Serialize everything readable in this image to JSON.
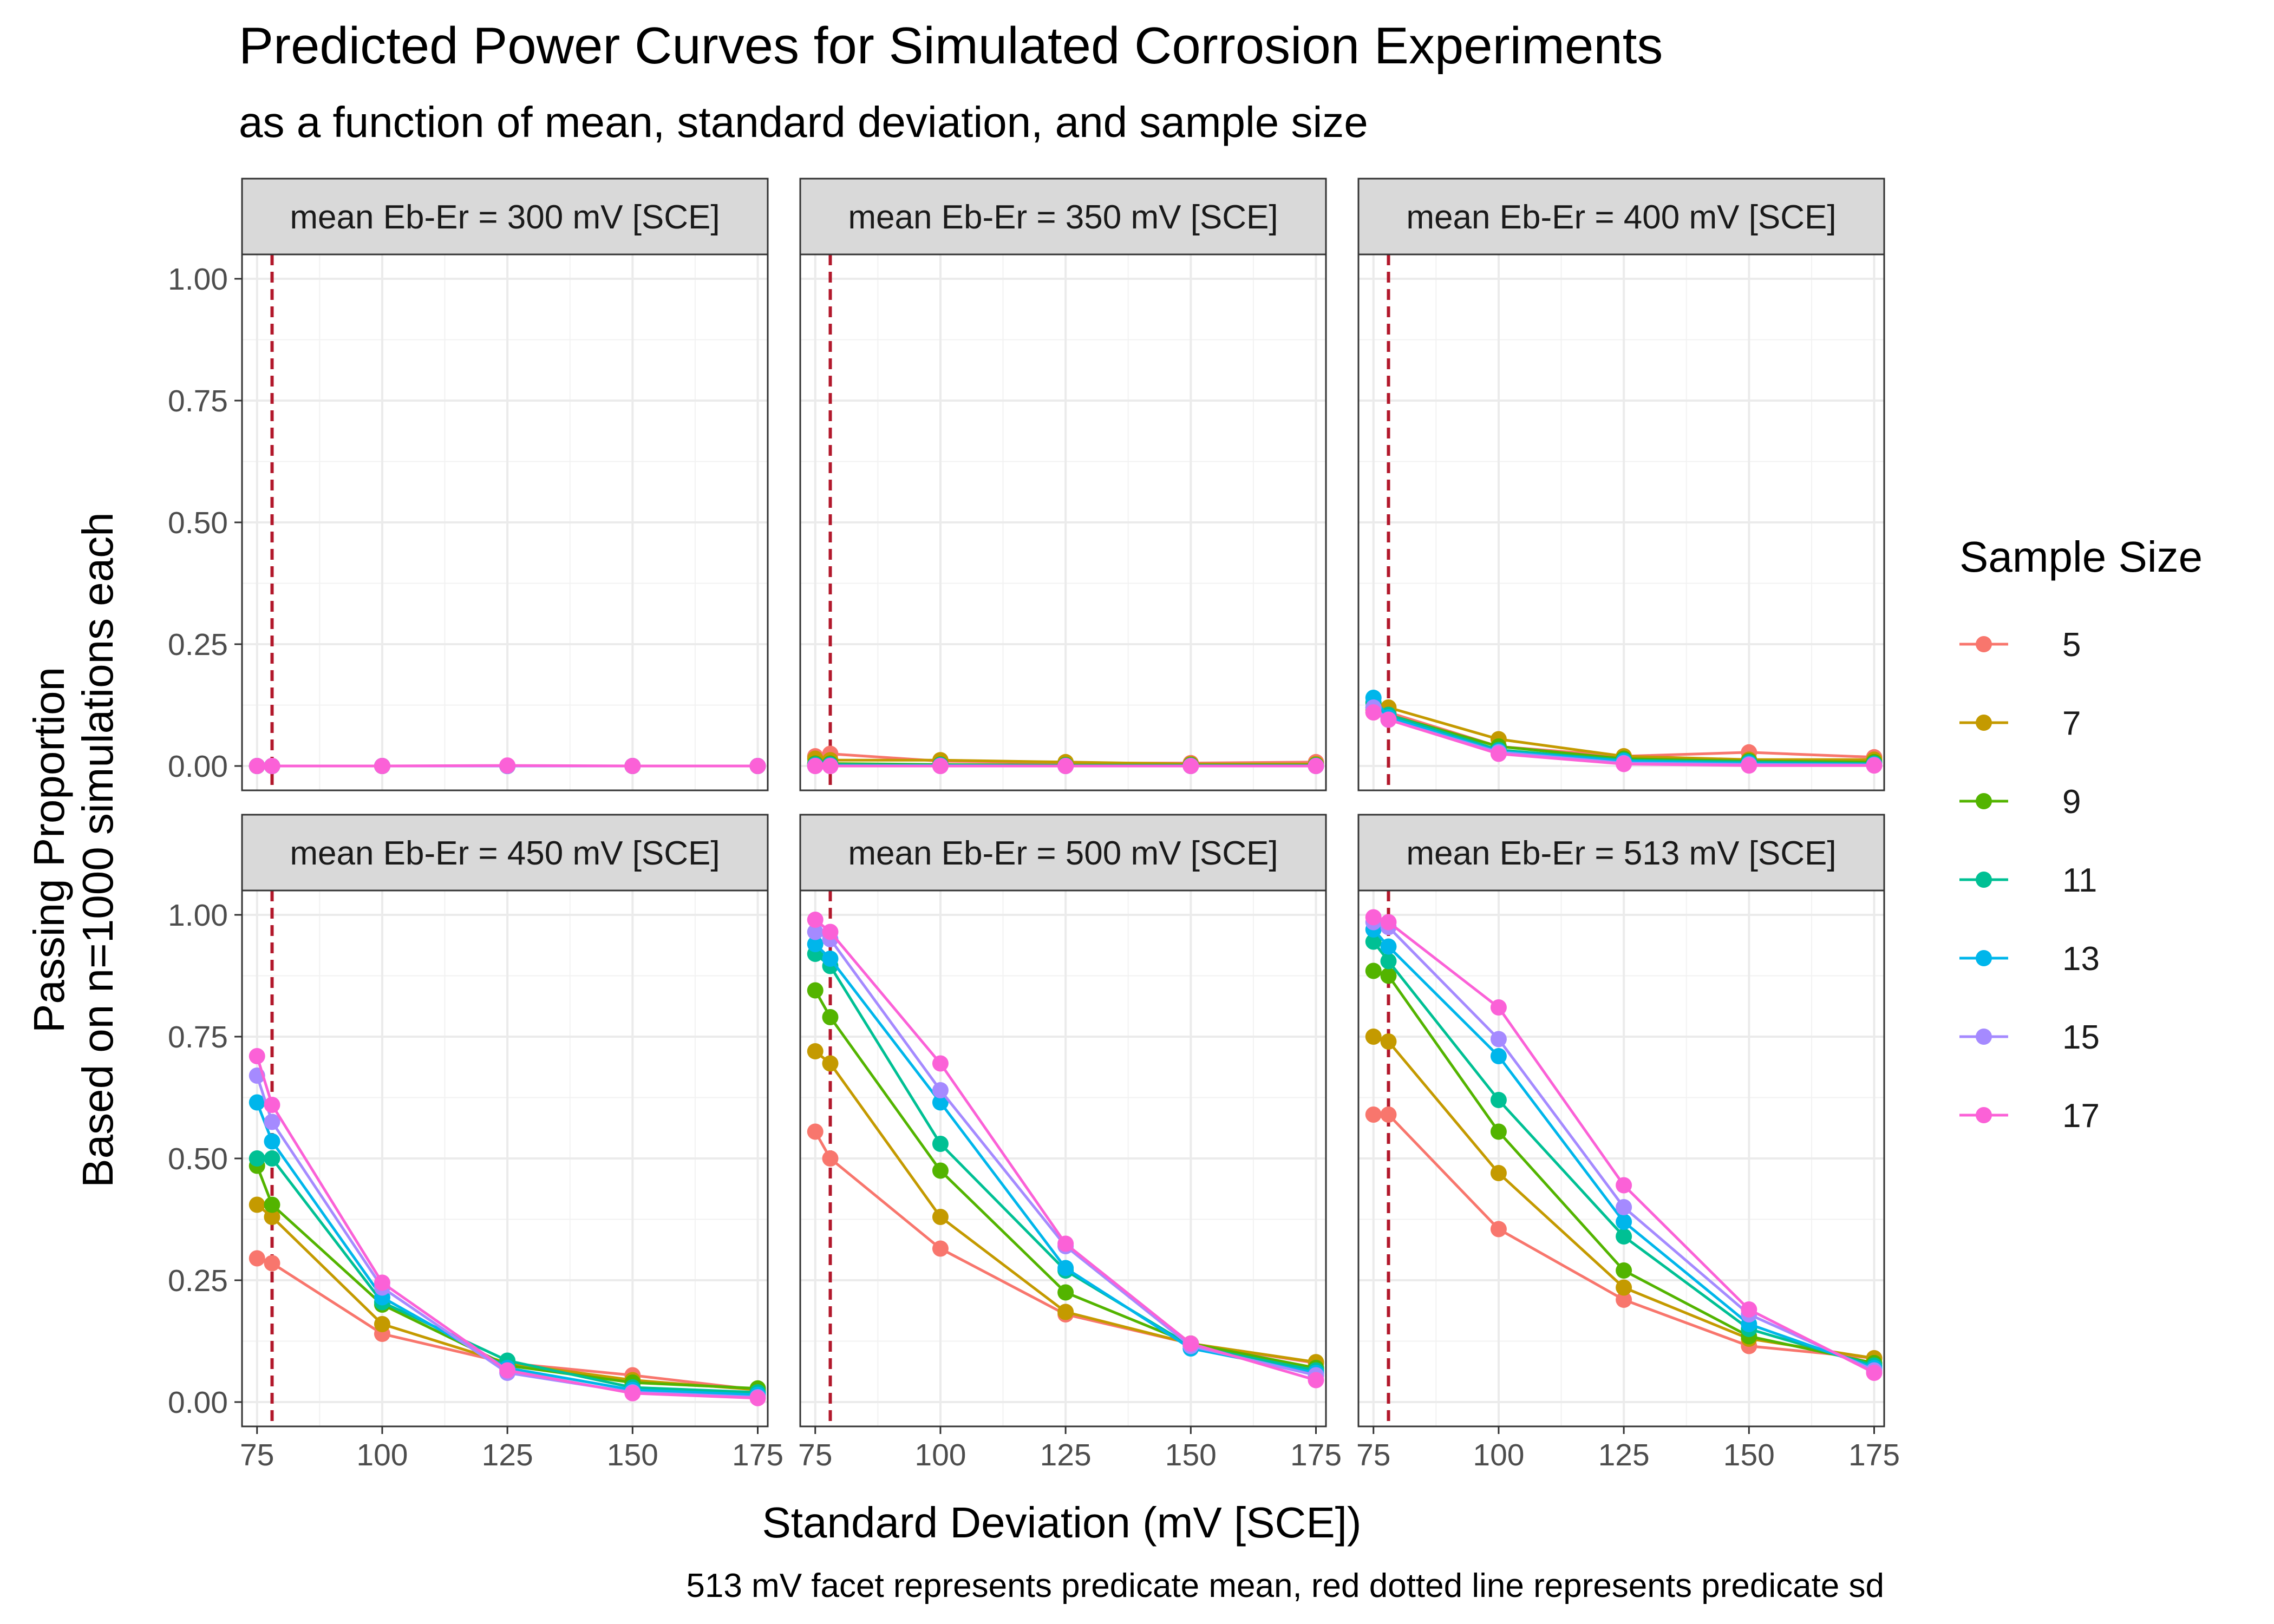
{
  "chart_data": {
    "type": "line",
    "title": "Predicted Power Curves for Simulated Corrosion Experiments",
    "subtitle": "as a function of mean, standard deviation, and sample size",
    "xlabel": "Standard Deviation (mV [SCE])",
    "ylabel_line1": "Passing Proportion",
    "ylabel_line2": "Based on n=1000 simulations each",
    "caption": "513 mV facet represents predicate mean, red dotted line represents predicate sd",
    "xlim": [
      72,
      177
    ],
    "ylim": [
      -0.05,
      1.05
    ],
    "x_ticks": [
      75,
      100,
      125,
      150,
      175
    ],
    "y_ticks": [
      "0.00",
      "0.25",
      "0.50",
      "0.75",
      "1.00"
    ],
    "y_tick_values": [
      0,
      0.25,
      0.5,
      0.75,
      1.0
    ],
    "x": [
      75,
      78,
      100,
      125,
      150,
      175
    ],
    "vline_x": 78,
    "vline_color": "#b2182b",
    "grid": true,
    "legend": {
      "title": "Sample Size",
      "position": "right",
      "entries": [
        "5",
        "7",
        "9",
        "11",
        "13",
        "15",
        "17"
      ]
    },
    "series_colors": [
      "#F8766D",
      "#C49A00",
      "#53B400",
      "#00C094",
      "#00B6EB",
      "#A58AFF",
      "#FB61D7"
    ],
    "panels": [
      {
        "label": "mean Eb-Er = 300 mV [SCE]",
        "series": [
          {
            "name": "5",
            "values": [
              0.0,
              0.0,
              0.0,
              0.0,
              0.0,
              0.0
            ]
          },
          {
            "name": "7",
            "values": [
              0.0,
              0.0,
              0.0,
              0.0,
              0.0,
              0.0
            ]
          },
          {
            "name": "9",
            "values": [
              0.0,
              0.0,
              0.0,
              0.0,
              0.0,
              0.0
            ]
          },
          {
            "name": "11",
            "values": [
              0.0,
              0.0,
              0.0,
              0.0,
              0.0,
              0.0
            ]
          },
          {
            "name": "13",
            "values": [
              0.0,
              0.0,
              0.0,
              0.0,
              0.0,
              0.0
            ]
          },
          {
            "name": "15",
            "values": [
              0.0,
              0.0,
              0.0,
              0.0,
              0.0,
              0.0
            ]
          },
          {
            "name": "17",
            "values": [
              0.0,
              0.0,
              0.0,
              0.001,
              0.0,
              0.0
            ]
          }
        ]
      },
      {
        "label": "mean Eb-Er = 350 mV [SCE]",
        "series": [
          {
            "name": "5",
            "values": [
              0.02,
              0.025,
              0.01,
              0.006,
              0.006,
              0.008
            ]
          },
          {
            "name": "7",
            "values": [
              0.015,
              0.012,
              0.012,
              0.008,
              0.004,
              0.004
            ]
          },
          {
            "name": "9",
            "values": [
              0.005,
              0.005,
              0.003,
              0.002,
              0.002,
              0.002
            ]
          },
          {
            "name": "11",
            "values": [
              0.003,
              0.003,
              0.002,
              0.001,
              0.001,
              0.001
            ]
          },
          {
            "name": "13",
            "values": [
              0.001,
              0.001,
              0.001,
              0.0,
              0.0,
              0.0
            ]
          },
          {
            "name": "15",
            "values": [
              0.0,
              0.0,
              0.0,
              0.0,
              0.0,
              0.0
            ]
          },
          {
            "name": "17",
            "values": [
              0.0,
              0.0,
              0.0,
              0.0,
              0.0,
              0.0
            ]
          }
        ]
      },
      {
        "label": "mean Eb-Er = 400 mV [SCE]",
        "series": [
          {
            "name": "5",
            "values": [
              0.11,
              0.11,
              0.04,
              0.02,
              0.028,
              0.018
            ]
          },
          {
            "name": "7",
            "values": [
              0.115,
              0.12,
              0.055,
              0.02,
              0.013,
              0.013
            ]
          },
          {
            "name": "9",
            "values": [
              0.12,
              0.105,
              0.04,
              0.015,
              0.01,
              0.008
            ]
          },
          {
            "name": "11",
            "values": [
              0.13,
              0.105,
              0.033,
              0.012,
              0.008,
              0.005
            ]
          },
          {
            "name": "13",
            "values": [
              0.14,
              0.1,
              0.03,
              0.01,
              0.005,
              0.003
            ]
          },
          {
            "name": "15",
            "values": [
              0.12,
              0.095,
              0.028,
              0.006,
              0.003,
              0.002
            ]
          },
          {
            "name": "17",
            "values": [
              0.11,
              0.095,
              0.025,
              0.004,
              0.001,
              0.001
            ]
          }
        ]
      },
      {
        "label": "mean Eb-Er = 450 mV [SCE]",
        "series": [
          {
            "name": "5",
            "values": [
              0.295,
              0.285,
              0.14,
              0.08,
              0.055,
              0.025
            ]
          },
          {
            "name": "7",
            "values": [
              0.405,
              0.38,
              0.16,
              0.08,
              0.045,
              0.025
            ]
          },
          {
            "name": "9",
            "values": [
              0.485,
              0.405,
              0.2,
              0.075,
              0.04,
              0.028
            ]
          },
          {
            "name": "11",
            "values": [
              0.5,
              0.5,
              0.205,
              0.085,
              0.03,
              0.02
            ]
          },
          {
            "name": "13",
            "values": [
              0.615,
              0.535,
              0.215,
              0.07,
              0.025,
              0.015
            ]
          },
          {
            "name": "15",
            "values": [
              0.67,
              0.575,
              0.235,
              0.06,
              0.02,
              0.01
            ]
          },
          {
            "name": "17",
            "values": [
              0.71,
              0.61,
              0.245,
              0.065,
              0.018,
              0.008
            ]
          }
        ]
      },
      {
        "label": "mean Eb-Er = 500 mV [SCE]",
        "series": [
          {
            "name": "5",
            "values": [
              0.555,
              0.5,
              0.315,
              0.18,
              0.12,
              0.08
            ]
          },
          {
            "name": "7",
            "values": [
              0.72,
              0.695,
              0.38,
              0.185,
              0.12,
              0.082
            ]
          },
          {
            "name": "9",
            "values": [
              0.845,
              0.79,
              0.475,
              0.225,
              0.12,
              0.07
            ]
          },
          {
            "name": "11",
            "values": [
              0.92,
              0.895,
              0.53,
              0.27,
              0.115,
              0.065
            ]
          },
          {
            "name": "13",
            "values": [
              0.94,
              0.91,
              0.615,
              0.275,
              0.11,
              0.06
            ]
          },
          {
            "name": "15",
            "values": [
              0.965,
              0.95,
              0.64,
              0.32,
              0.115,
              0.055
            ]
          },
          {
            "name": "17",
            "values": [
              0.99,
              0.965,
              0.695,
              0.325,
              0.12,
              0.045
            ]
          }
        ]
      },
      {
        "label": "mean Eb-Er = 513 mV [SCE]",
        "series": [
          {
            "name": "5",
            "values": [
              0.59,
              0.59,
              0.355,
              0.21,
              0.115,
              0.09
            ]
          },
          {
            "name": "7",
            "values": [
              0.75,
              0.74,
              0.47,
              0.235,
              0.13,
              0.09
            ]
          },
          {
            "name": "9",
            "values": [
              0.885,
              0.875,
              0.555,
              0.27,
              0.135,
              0.08
            ]
          },
          {
            "name": "11",
            "values": [
              0.945,
              0.905,
              0.62,
              0.34,
              0.15,
              0.075
            ]
          },
          {
            "name": "13",
            "values": [
              0.97,
              0.935,
              0.71,
              0.37,
              0.16,
              0.07
            ]
          },
          {
            "name": "15",
            "values": [
              0.985,
              0.975,
              0.745,
              0.4,
              0.18,
              0.065
            ]
          },
          {
            "name": "17",
            "values": [
              0.995,
              0.985,
              0.81,
              0.445,
              0.19,
              0.06
            ]
          }
        ]
      }
    ]
  }
}
